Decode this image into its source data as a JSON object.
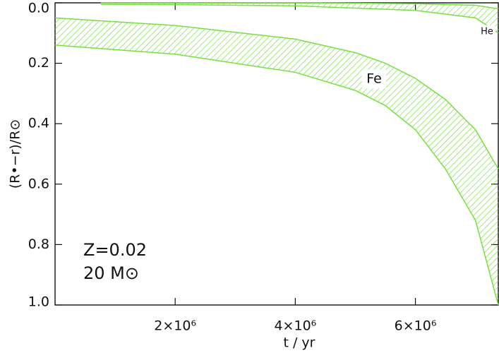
{
  "chart_data": {
    "type": "band",
    "xlabel": "t / yr",
    "ylabel": "(R•−r)/R⊙",
    "xlim": [
      0,
      7380000
    ],
    "ylim": [
      0,
      1
    ],
    "y_inverted": true,
    "xticks": [
      {
        "value": 2000000,
        "label": "2×10⁶"
      },
      {
        "value": 4000000,
        "label": "4×10⁶"
      },
      {
        "value": 6000000,
        "label": "6×10⁶"
      }
    ],
    "yticks": [
      {
        "value": 0,
        "label": "0.0"
      },
      0.2,
      0.4,
      0.6,
      0.8,
      {
        "value": 1,
        "label": "1.0"
      }
    ],
    "annotations": [
      "Z=0.02",
      "20 M⊙"
    ],
    "series": [
      {
        "name": "He",
        "color": "#77e040",
        "x": [
          760000,
          2000000,
          4000000,
          6000000,
          7000000,
          7380000
        ],
        "top": [
          0,
          0,
          0,
          0.003,
          0.008,
          0.02
        ],
        "bottom": [
          0.005,
          0.006,
          0.01,
          0.025,
          0.05,
          0.1
        ]
      },
      {
        "name": "Fe",
        "color": "#77e040",
        "x": [
          0,
          2000000,
          4000000,
          5000000,
          5500000,
          6000000,
          6500000,
          7000000,
          7380000
        ],
        "top": [
          0.05,
          0.075,
          0.12,
          0.165,
          0.2,
          0.25,
          0.32,
          0.42,
          0.55
        ],
        "bottom": [
          0.14,
          0.17,
          0.23,
          0.29,
          0.34,
          0.42,
          0.55,
          0.72,
          1.0
        ]
      }
    ]
  }
}
